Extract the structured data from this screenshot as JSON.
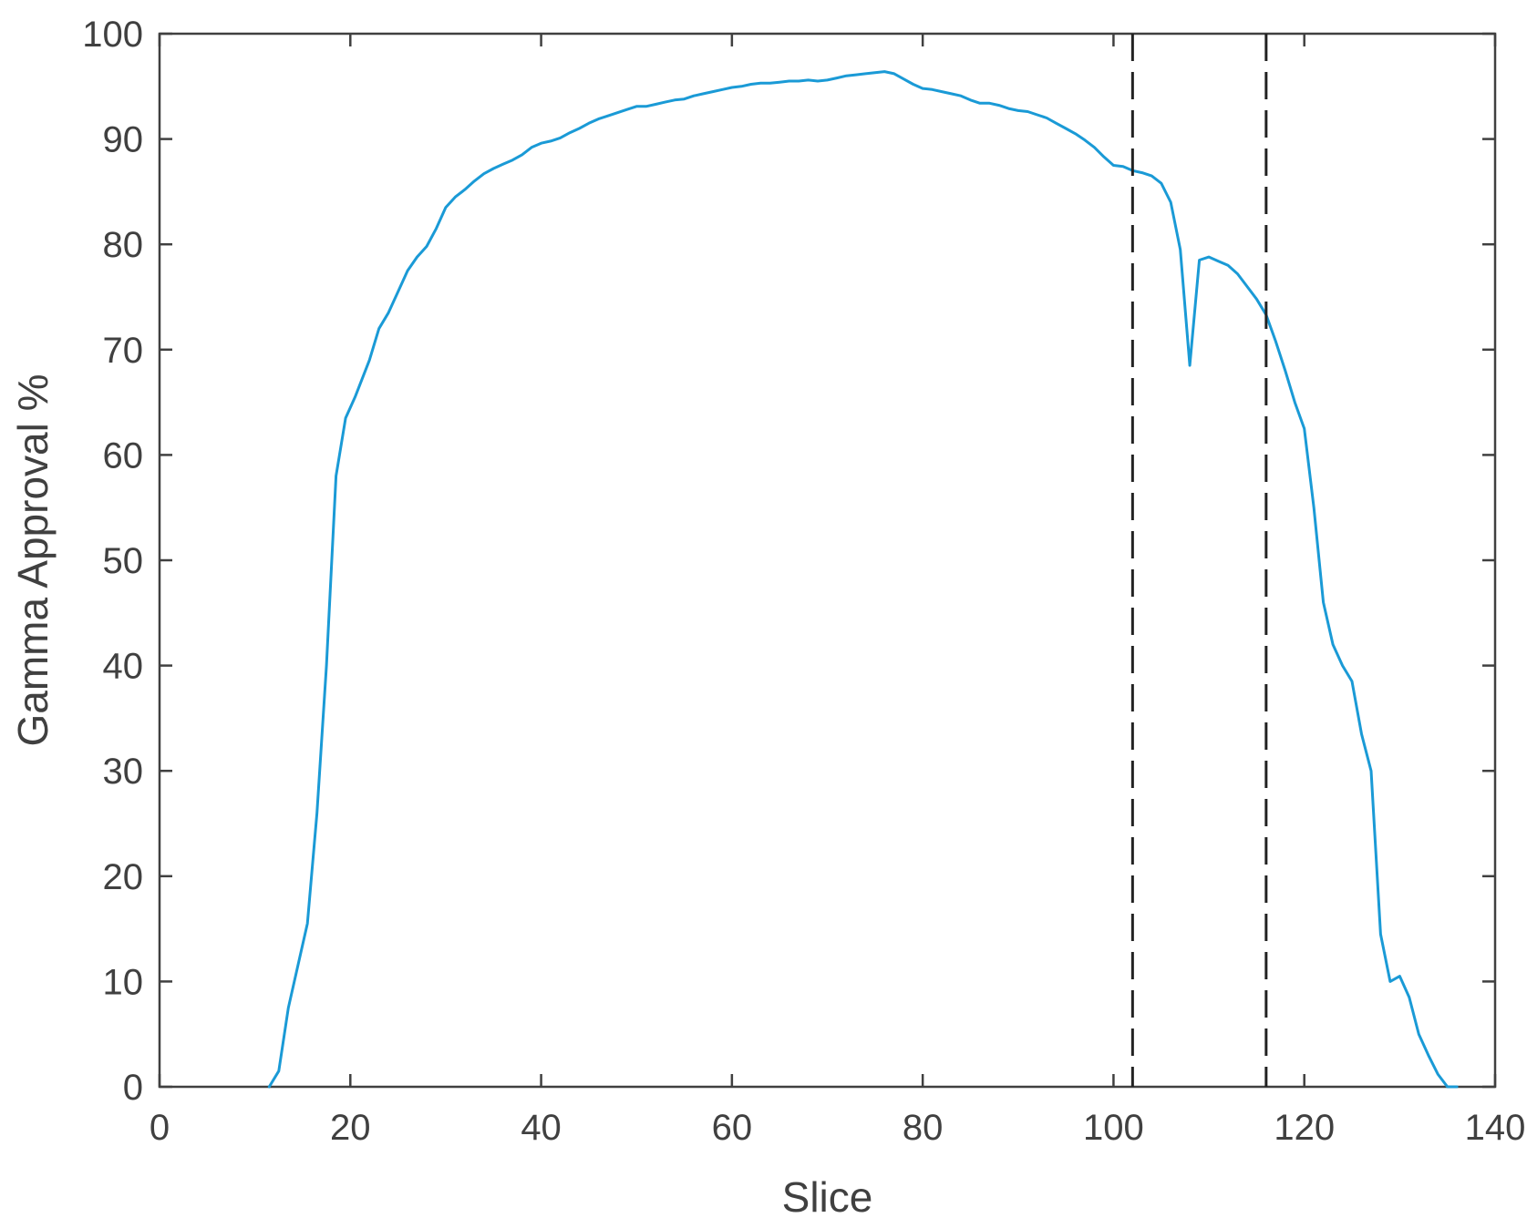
{
  "chart_data": {
    "type": "line",
    "title": "",
    "xlabel": "Slice",
    "ylabel": "Gamma Approval %",
    "xlim": [
      0,
      140
    ],
    "ylim": [
      0,
      100
    ],
    "xticks": [
      0,
      20,
      40,
      60,
      80,
      100,
      120,
      140
    ],
    "yticks": [
      0,
      10,
      20,
      30,
      40,
      50,
      60,
      70,
      80,
      90,
      100
    ],
    "grid": false,
    "legend": "none",
    "colors": {
      "series": "#1a9ad6",
      "reference_lines": "#222222",
      "axes": "#404040"
    },
    "series": [
      {
        "x": [
          11.5,
          12.5,
          13.5,
          15.5,
          16.5,
          17.5,
          18.5,
          19.5,
          20.5,
          22,
          23,
          24,
          25,
          26,
          27,
          28,
          29,
          30,
          31,
          32,
          33,
          34,
          35,
          36,
          37,
          38,
          39,
          40,
          41,
          42,
          43,
          44,
          45,
          46,
          47,
          48,
          49,
          50,
          51,
          52,
          53,
          54,
          55,
          56,
          57,
          58,
          59,
          60,
          61,
          62,
          63,
          64,
          65,
          66,
          67,
          68,
          69,
          70,
          71,
          72,
          73,
          74,
          75,
          76,
          77,
          78,
          79,
          80,
          81,
          82,
          83,
          84,
          85,
          86,
          87,
          88,
          89,
          90,
          91,
          92,
          93,
          94,
          95,
          96,
          97,
          98,
          99,
          100,
          101,
          102,
          103,
          104,
          105,
          106,
          107,
          108,
          109,
          110,
          111,
          112,
          113,
          114,
          115,
          116,
          117,
          118,
          119,
          120,
          121,
          122,
          123,
          124,
          125,
          126,
          127,
          128,
          129,
          130,
          131,
          132,
          133,
          134,
          135,
          136
        ],
        "values": [
          0,
          1.5,
          7.5,
          15.5,
          26,
          40,
          58,
          63.5,
          65.5,
          69,
          72,
          73.5,
          75.5,
          77.5,
          78.8,
          79.8,
          81.5,
          83.5,
          84.5,
          85.2,
          86,
          86.7,
          87.2,
          87.6,
          88,
          88.5,
          89.2,
          89.6,
          89.8,
          90.1,
          90.6,
          91,
          91.5,
          91.9,
          92.2,
          92.5,
          92.8,
          93.1,
          93.1,
          93.3,
          93.5,
          93.7,
          93.8,
          94.1,
          94.3,
          94.5,
          94.7,
          94.9,
          95,
          95.2,
          95.3,
          95.3,
          95.4,
          95.5,
          95.5,
          95.6,
          95.5,
          95.6,
          95.8,
          96,
          96.1,
          96.2,
          96.3,
          96.4,
          96.2,
          95.7,
          95.2,
          94.8,
          94.7,
          94.5,
          94.3,
          94.1,
          93.7,
          93.4,
          93.4,
          93.2,
          92.9,
          92.7,
          92.6,
          92.3,
          92,
          91.5,
          91,
          90.5,
          89.9,
          89.2,
          88.3,
          87.5,
          87.4,
          87,
          86.8,
          86.5,
          85.8,
          84,
          79.5,
          68.5,
          78.5,
          78.8,
          78.4,
          78,
          77.2,
          76,
          74.8,
          73.3,
          70.8,
          68,
          65,
          62.5,
          55,
          46,
          42,
          40,
          38.5,
          33.5,
          30,
          14.5,
          10,
          10.5,
          8.5,
          5,
          3,
          1.2,
          0,
          0
        ],
        "color": "#1a9ad6"
      }
    ],
    "reference_lines": [
      {
        "orientation": "vertical",
        "x": 102,
        "style": "dashed"
      },
      {
        "orientation": "vertical",
        "x": 116,
        "style": "dashed"
      }
    ]
  }
}
